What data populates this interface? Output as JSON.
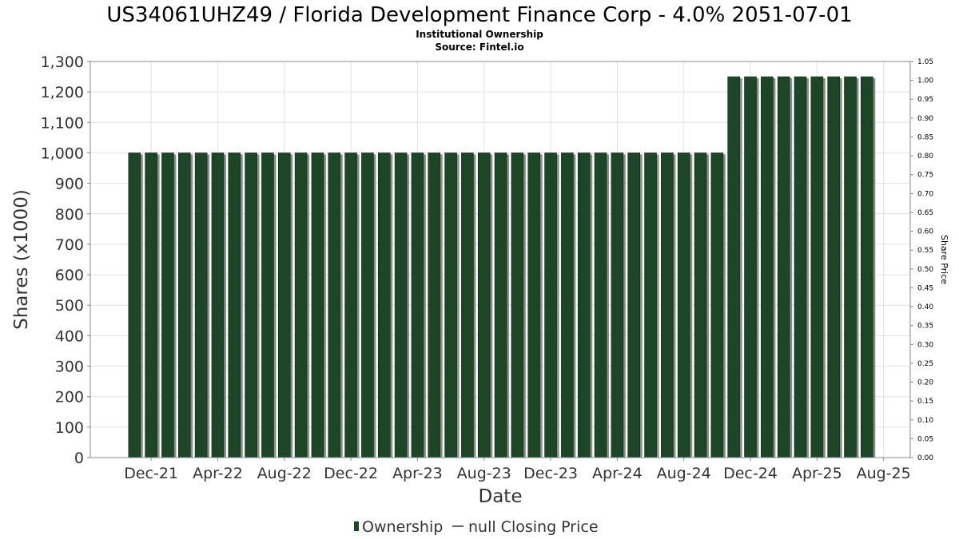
{
  "header": {
    "title": "US34061UHZ49 / Florida Development Finance Corp - 4.0% 2051-07-01",
    "subtitle": "Institutional Ownership",
    "source": "Source: Fintel.io"
  },
  "legend": {
    "ownership_label": "Ownership",
    "price_label": "null Closing Price"
  },
  "colors": {
    "bar": "#1d4527",
    "bar_shadow": "#8a8f88",
    "grid": "#e2e2e2",
    "axis": "#888888"
  },
  "chart_data": {
    "type": "bar",
    "xlabel": "Date",
    "ylabel": "Shares (x1000)",
    "y2label": "Share Price",
    "ylim": [
      0,
      1300
    ],
    "y2lim": [
      0,
      1.05
    ],
    "grid": true,
    "legend_position": "bottom",
    "x_tick_labels": [
      "Dec-21",
      "Apr-22",
      "Aug-22",
      "Dec-22",
      "Apr-23",
      "Aug-23",
      "Dec-23",
      "Apr-24",
      "Aug-24",
      "Dec-24",
      "Apr-25",
      "Aug-25"
    ],
    "y_tick_labels": [
      "0",
      "100",
      "200",
      "300",
      "400",
      "500",
      "600",
      "700",
      "800",
      "900",
      "1,000",
      "1,100",
      "1,200",
      "1,300"
    ],
    "y2_tick_labels": [
      "0.00",
      "0.05",
      "0.10",
      "0.15",
      "0.20",
      "0.25",
      "0.30",
      "0.35",
      "0.40",
      "0.45",
      "0.50",
      "0.55",
      "0.60",
      "0.65",
      "0.70",
      "0.75",
      "0.80",
      "0.85",
      "0.90",
      "0.95",
      "1.00",
      "1.05"
    ],
    "series": [
      {
        "name": "Ownership",
        "values": [
          1000,
          1000,
          1000,
          1000,
          1000,
          1000,
          1000,
          1000,
          1000,
          1000,
          1000,
          1000,
          1000,
          1000,
          1000,
          1000,
          1000,
          1000,
          1000,
          1000,
          1000,
          1000,
          1000,
          1000,
          1000,
          1000,
          1000,
          1000,
          1000,
          1000,
          1000,
          1000,
          1000,
          1000,
          1000,
          1000,
          1250,
          1250,
          1250,
          1250,
          1250,
          1250,
          1250,
          1250,
          1250
        ]
      }
    ]
  }
}
